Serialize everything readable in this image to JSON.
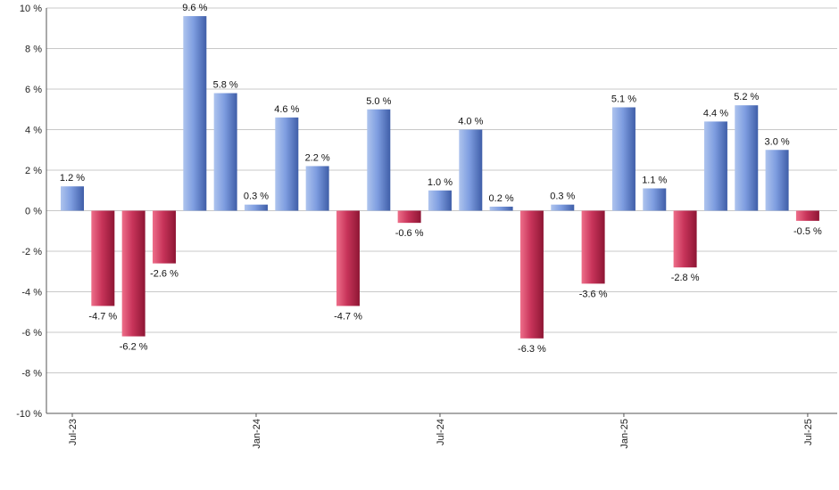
{
  "chart_data": {
    "type": "bar",
    "title": "",
    "xlabel": "",
    "ylabel": "",
    "ylim": [
      -10,
      10
    ],
    "y_ticks": [
      10,
      8,
      6,
      4,
      2,
      0,
      -2,
      -4,
      -6,
      -8,
      -10
    ],
    "y_tick_suffix": " %",
    "grid": true,
    "legend": "none",
    "categories": [
      "2023-07",
      "2023-08",
      "2023-09",
      "2023-10",
      "2023-11",
      "2023-12",
      "2024-01",
      "2024-02",
      "2024-03",
      "2024-04",
      "2024-05",
      "2024-06",
      "2024-07",
      "2024-08",
      "2024-09",
      "2024-10",
      "2024-11",
      "2024-12",
      "2025-01",
      "2025-02",
      "2025-03",
      "2025-04",
      "2025-05",
      "2025-06",
      "2025-07"
    ],
    "values": [
      1.2,
      -4.7,
      -6.2,
      -2.6,
      9.6,
      5.8,
      0.3,
      4.6,
      2.2,
      -4.7,
      5.0,
      -0.6,
      1.0,
      4.0,
      0.2,
      -6.3,
      0.3,
      -3.6,
      5.1,
      1.1,
      -2.8,
      4.4,
      5.2,
      3.0,
      -0.5
    ],
    "data_labels": [
      "1.2 %",
      "-4.7 %",
      "-6.2 %",
      "-2.6 %",
      "9.6 %",
      "5.8 %",
      "0.3 %",
      "4.6 %",
      "2.2 %",
      "-4.7 %",
      "5.0 %",
      "-0.6 %",
      "1.0 %",
      "4.0 %",
      "0.2 %",
      "-6.3 %",
      "0.3 %",
      "-3.6 %",
      "5.1 %",
      "1.1 %",
      "-2.8 %",
      "4.4 %",
      "5.2 %",
      "3.0 %",
      "-0.5 %"
    ],
    "x_tick_labels": [
      {
        "category": "2023-07",
        "label": "Jul-23"
      },
      {
        "category": "2024-01",
        "label": "Jan-24"
      },
      {
        "category": "2024-07",
        "label": "Jul-24"
      },
      {
        "category": "2025-01",
        "label": "Jan-25"
      },
      {
        "category": "2025-07",
        "label": "Jul-25"
      }
    ],
    "colors": {
      "positive_light": "#aec4ee",
      "positive_mid": "#7e9de0",
      "positive_dark": "#3f5ea8",
      "negative_light": "#ee6f8a",
      "negative_mid": "#c8345a",
      "negative_dark": "#8e1634",
      "grid": "#c8c8c8",
      "axis": "#555555"
    }
  }
}
